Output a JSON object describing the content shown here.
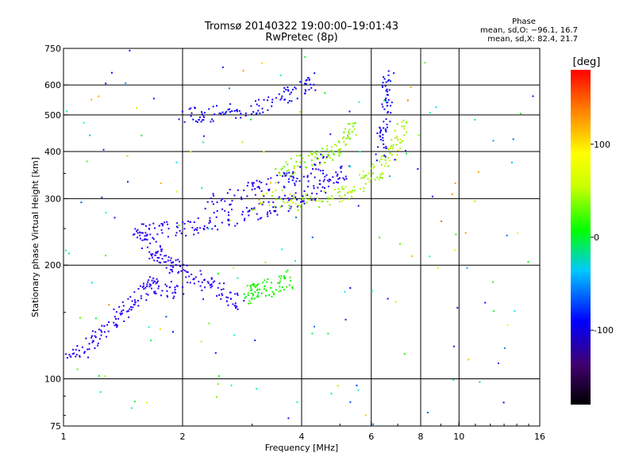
{
  "header": {
    "title_line1": "Tromsø 20140322 19:00:00–19:01:43",
    "title_line2": "RwPretec (8p)",
    "phase_label": "Phase",
    "stat_o": "mean, sd,O: −96.1, 16.7",
    "stat_x": "mean, sd,X:  82.4, 21.7"
  },
  "colorbar": {
    "unit": "[deg]",
    "ticks": [
      {
        "value": 100,
        "label": "100"
      },
      {
        "value": 0,
        "label": "0"
      },
      {
        "value": -100,
        "label": "-100"
      }
    ],
    "range": [
      -180,
      180
    ]
  },
  "chart_data": {
    "type": "scatter",
    "title": "Tromsø 20140322 19:00:00–19:01:43",
    "subtitle": "RwPretec (8p)",
    "xlabel": "Frequency [MHz]",
    "ylabel": "Stationary phase Virtual Height [km]",
    "xscale": "log",
    "yscale": "log",
    "xlim": [
      1,
      16
    ],
    "ylim": [
      75,
      750
    ],
    "x_ticks": [
      {
        "value": 1,
        "label": "1"
      },
      {
        "value": 2,
        "label": "2"
      },
      {
        "value": 4,
        "label": "4"
      },
      {
        "value": 6,
        "label": "6"
      },
      {
        "value": 8,
        "label": "8"
      },
      {
        "value": 10,
        "label": "10"
      },
      {
        "value": 16,
        "label": "16"
      }
    ],
    "x_gridlines": [
      2,
      4,
      6,
      8,
      10
    ],
    "y_ticks": [
      {
        "value": 75,
        "label": "75"
      },
      {
        "value": 100,
        "label": "100"
      },
      {
        "value": 200,
        "label": "200"
      },
      {
        "value": 300,
        "label": "300"
      },
      {
        "value": 400,
        "label": "400"
      },
      {
        "value": 500,
        "label": "500"
      },
      {
        "value": 600,
        "label": "600"
      },
      {
        "value": 750,
        "label": "750"
      }
    ],
    "y_gridlines": [
      100,
      200,
      300,
      400,
      500,
      600
    ],
    "grid": true,
    "color_encodes": "phase [deg]",
    "traces": [
      {
        "phase": -110,
        "points": [
          [
            1.0,
            120
          ],
          [
            1.1,
            118
          ],
          [
            1.2,
            128
          ],
          [
            1.3,
            140
          ],
          [
            1.4,
            150
          ],
          [
            1.5,
            160
          ],
          [
            1.6,
            172
          ],
          [
            1.7,
            180
          ],
          [
            1.8,
            175
          ],
          [
            2.0,
            170
          ]
        ]
      },
      {
        "phase": -115,
        "points": [
          [
            1.5,
            250
          ],
          [
            1.6,
            240
          ],
          [
            1.7,
            215
          ],
          [
            1.8,
            205
          ],
          [
            1.9,
            200
          ],
          [
            2.0,
            195
          ],
          [
            2.2,
            185
          ],
          [
            2.4,
            175
          ],
          [
            2.6,
            165
          ],
          [
            2.8,
            160
          ]
        ]
      },
      {
        "phase": -110,
        "points": [
          [
            1.55,
            245
          ],
          [
            1.7,
            246
          ],
          [
            1.9,
            250
          ],
          [
            2.1,
            255
          ],
          [
            2.4,
            262
          ],
          [
            2.8,
            270
          ],
          [
            3.2,
            282
          ],
          [
            3.6,
            292
          ],
          [
            4.0,
            302
          ],
          [
            4.4,
            318
          ],
          [
            4.8,
            340
          ],
          [
            5.2,
            368
          ]
        ]
      },
      {
        "phase": -105,
        "points": [
          [
            2.3,
            290
          ],
          [
            2.6,
            300
          ],
          [
            3.0,
            318
          ],
          [
            3.4,
            330
          ],
          [
            3.8,
            342
          ],
          [
            4.2,
            358
          ],
          [
            4.6,
            378
          ]
        ]
      },
      {
        "phase": -100,
        "points": [
          [
            2.0,
            500
          ],
          [
            2.2,
            505
          ],
          [
            2.5,
            510
          ],
          [
            2.8,
            520
          ],
          [
            3.2,
            540
          ],
          [
            3.6,
            565
          ],
          [
            4.0,
            600
          ],
          [
            4.3,
            620
          ]
        ]
      },
      {
        "phase": 90,
        "points": [
          [
            3.0,
            296
          ],
          [
            3.5,
            302
          ],
          [
            4.0,
            296
          ],
          [
            4.5,
            300
          ],
          [
            5.0,
            310
          ],
          [
            5.5,
            325
          ],
          [
            6.0,
            345
          ],
          [
            6.4,
            370
          ],
          [
            6.7,
            400
          ],
          [
            7.0,
            440
          ],
          [
            7.2,
            480
          ]
        ]
      },
      {
        "phase": 80,
        "points": [
          [
            3.4,
            345
          ],
          [
            3.8,
            370
          ],
          [
            4.2,
            385
          ],
          [
            4.6,
            395
          ],
          [
            5.0,
            410
          ],
          [
            5.2,
            440
          ],
          [
            5.4,
            480
          ]
        ]
      },
      {
        "phase": 50,
        "points": [
          [
            2.9,
            165
          ],
          [
            3.0,
            170
          ],
          [
            3.1,
            172
          ],
          [
            3.3,
            175
          ],
          [
            3.5,
            180
          ],
          [
            3.8,
            185
          ]
        ]
      },
      {
        "phase": -95,
        "points": [
          [
            6.3,
            400
          ],
          [
            6.4,
            450
          ],
          [
            6.5,
            500
          ],
          [
            6.55,
            560
          ],
          [
            6.6,
            640
          ]
        ]
      }
    ],
    "noise_phase_range": [
      -130,
      150
    ]
  }
}
